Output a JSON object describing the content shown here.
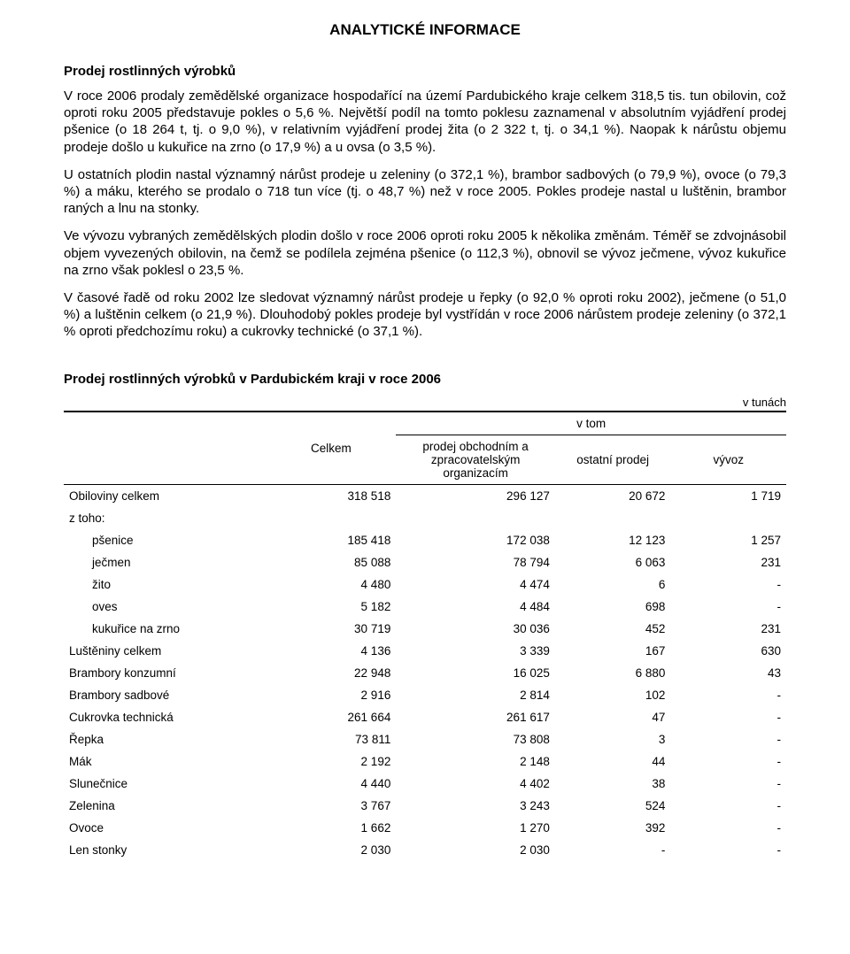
{
  "doc": {
    "title": "ANALYTICKÉ INFORMACE",
    "section_title": "Prodej rostlinných výrobků",
    "paragraphs": [
      "V roce 2006 prodaly zemědělské organizace hospodařící na území Pardubického kraje celkem 318,5 tis. tun obilovin, což oproti roku 2005 představuje pokles o 5,6 %. Největší podíl na tomto poklesu zaznamenal v absolutním vyjádření prodej pšenice (o 18 264 t, tj. o 9,0 %), v relativním vyjádření prodej žita (o 2 322 t, tj. o 34,1 %). Naopak k nárůstu objemu prodeje došlo u kukuřice na zrno (o 17,9 %) a u ovsa (o 3,5 %).",
      "U ostatních plodin nastal významný nárůst prodeje u zeleniny (o 372,1 %), brambor sadbových (o 79,9 %), ovoce (o 79,3 %) a máku, kterého se prodalo o 718 tun více (tj. o 48,7 %) než v roce 2005. Pokles prodeje nastal u luštěnin, brambor raných a lnu na stonky.",
      "Ve vývozu vybraných zemědělských plodin došlo v roce 2006 oproti roku 2005 k několika změnám. Téměř se zdvojnásobil objem vyvezených obilovin, na čemž se podílela zejména pšenice (o 112,3 %), obnovil se vývoz ječmene, vývoz kukuřice na zrno však poklesl o 23,5 %.",
      "V časové řadě od roku 2002 lze sledovat významný nárůst prodeje u řepky (o 92,0 % oproti roku 2002), ječmene (o 51,0 %) a luštěnin celkem (o 21,9 %). Dlouhodobý pokles prodeje byl vystřídán v roce 2006 nárůstem prodeje zeleniny (o 372,1 % oproti předchozímu roku) a cukrovky technické (o 37,1 %)."
    ]
  },
  "table": {
    "title": "Prodej rostlinných výrobků v Pardubickém kraji v roce 2006",
    "unit": "v tunách",
    "head": {
      "celkem": "Celkem",
      "vtom": "v tom",
      "sub": [
        "prodej obchodním a zpracovatelským organizacím",
        "ostatní prodej",
        "vývoz"
      ]
    },
    "rows": [
      {
        "label": "Obiloviny celkem",
        "indent": false,
        "cells": [
          "318 518",
          "296 127",
          "20 672",
          "1 719"
        ]
      },
      {
        "label": "z toho:",
        "indent": false,
        "cells": [
          "",
          "",
          "",
          ""
        ]
      },
      {
        "label": "pšenice",
        "indent": true,
        "cells": [
          "185 418",
          "172 038",
          "12 123",
          "1 257"
        ]
      },
      {
        "label": "ječmen",
        "indent": true,
        "cells": [
          "85 088",
          "78 794",
          "6 063",
          "231"
        ]
      },
      {
        "label": "žito",
        "indent": true,
        "cells": [
          "4 480",
          "4 474",
          "6",
          "-"
        ]
      },
      {
        "label": "oves",
        "indent": true,
        "cells": [
          "5 182",
          "4 484",
          "698",
          "-"
        ]
      },
      {
        "label": "kukuřice na zrno",
        "indent": true,
        "cells": [
          "30 719",
          "30 036",
          "452",
          "231"
        ]
      },
      {
        "label": "Luštěniny celkem",
        "indent": false,
        "cells": [
          "4 136",
          "3 339",
          "167",
          "630"
        ]
      },
      {
        "label": "Brambory konzumní",
        "indent": false,
        "cells": [
          "22 948",
          "16 025",
          "6 880",
          "43"
        ]
      },
      {
        "label": "Brambory sadbové",
        "indent": false,
        "cells": [
          "2 916",
          "2 814",
          "102",
          "-"
        ]
      },
      {
        "label": "Cukrovka technická",
        "indent": false,
        "cells": [
          "261 664",
          "261 617",
          "47",
          "-"
        ]
      },
      {
        "label": "Řepka",
        "indent": false,
        "cells": [
          "73 811",
          "73 808",
          "3",
          "-"
        ]
      },
      {
        "label": "Mák",
        "indent": false,
        "cells": [
          "2 192",
          "2 148",
          "44",
          "-"
        ]
      },
      {
        "label": "Slunečnice",
        "indent": false,
        "cells": [
          "4 440",
          "4 402",
          "38",
          "-"
        ]
      },
      {
        "label": "Zelenina",
        "indent": false,
        "cells": [
          "3 767",
          "3 243",
          "524",
          "-"
        ]
      },
      {
        "label": "Ovoce",
        "indent": false,
        "cells": [
          "1 662",
          "1 270",
          "392",
          "-"
        ]
      },
      {
        "label": "Len stonky",
        "indent": false,
        "cells": [
          "2 030",
          "2 030",
          "-",
          "-"
        ]
      }
    ]
  }
}
